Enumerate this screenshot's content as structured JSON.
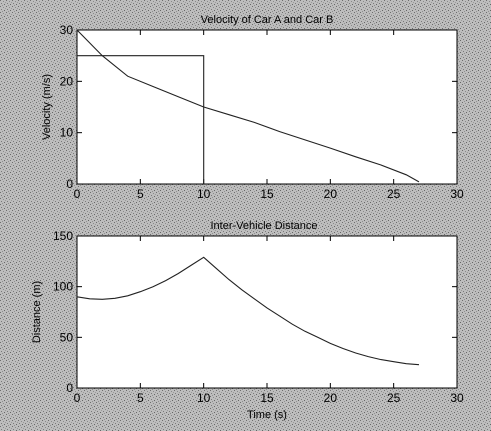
{
  "colors": {
    "background_pattern": "#b8b8b8",
    "axes_face": "#ffffff",
    "line": "#222222"
  },
  "chart_data": [
    {
      "type": "line",
      "title": "Velocity of Car A and Car B",
      "xlabel": "",
      "ylabel": "Velocity (m/s)",
      "xlim": [
        0,
        30
      ],
      "ylim": [
        0,
        30
      ],
      "xticks": [
        0,
        5,
        10,
        15,
        20,
        25,
        30
      ],
      "xtick_labels": [
        "0",
        "5",
        "10",
        "15",
        "20",
        "25",
        "30"
      ],
      "yticks": [
        0,
        10,
        20,
        30
      ],
      "ytick_labels": [
        "0",
        "10",
        "20",
        "30"
      ],
      "grid": false,
      "series": [
        {
          "x": [
            0,
            2,
            4,
            6,
            8,
            10,
            12,
            14,
            16,
            18,
            20,
            22,
            24,
            26,
            27
          ],
          "y": [
            30,
            25,
            21,
            19,
            17,
            15,
            13.5,
            12,
            10.2,
            8.6,
            7,
            5.3,
            3.7,
            1.8,
            0.4
          ]
        },
        {
          "x": [
            0,
            10,
            10
          ],
          "y": [
            25,
            25,
            0
          ]
        }
      ]
    },
    {
      "type": "line",
      "title": "Inter-Vehicle Distance",
      "xlabel": "Time (s)",
      "ylabel": "Distance (m)",
      "xlim": [
        0,
        30
      ],
      "ylim": [
        0,
        150
      ],
      "xticks": [
        0,
        5,
        10,
        15,
        20,
        25,
        30
      ],
      "xtick_labels": [
        "0",
        "5",
        "10",
        "15",
        "20",
        "25",
        "30"
      ],
      "yticks": [
        0,
        50,
        100,
        150
      ],
      "ytick_labels": [
        "0",
        "50",
        "100",
        "150"
      ],
      "grid": false,
      "series": [
        {
          "x": [
            0,
            1,
            2,
            3,
            4,
            5,
            6,
            7,
            8,
            9,
            10,
            11,
            12,
            13,
            14,
            15,
            16,
            17,
            18,
            19,
            20,
            21,
            22,
            23,
            24,
            25,
            26,
            27
          ],
          "y": [
            90,
            88,
            87.5,
            88.5,
            91,
            95,
            100,
            106,
            113,
            121,
            129,
            118,
            107,
            97,
            88,
            79,
            71,
            63,
            56,
            50,
            44,
            39,
            34.5,
            31,
            28,
            26,
            24,
            23
          ]
        }
      ]
    }
  ]
}
